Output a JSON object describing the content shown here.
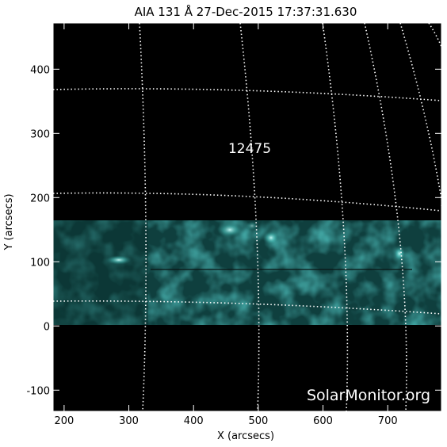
{
  "title": "AIA 131 Å 27-Dec-2015 17:37:31.630",
  "xlabel": "X (arcsecs)",
  "ylabel": "Y (arcsecs)",
  "x_ticks": [
    200,
    300,
    400,
    500,
    600,
    700
  ],
  "y_ticks": [
    -100,
    0,
    100,
    200,
    300,
    400
  ],
  "x_range": [
    183,
    783
  ],
  "y_range": [
    -133,
    472
  ],
  "region_label": "12475",
  "watermark": "SolarMonitor.org",
  "colors": {
    "background": "#000000",
    "data_tint": "#2a8c88",
    "frame": "#ffffff",
    "grid": "#ffffff"
  }
}
